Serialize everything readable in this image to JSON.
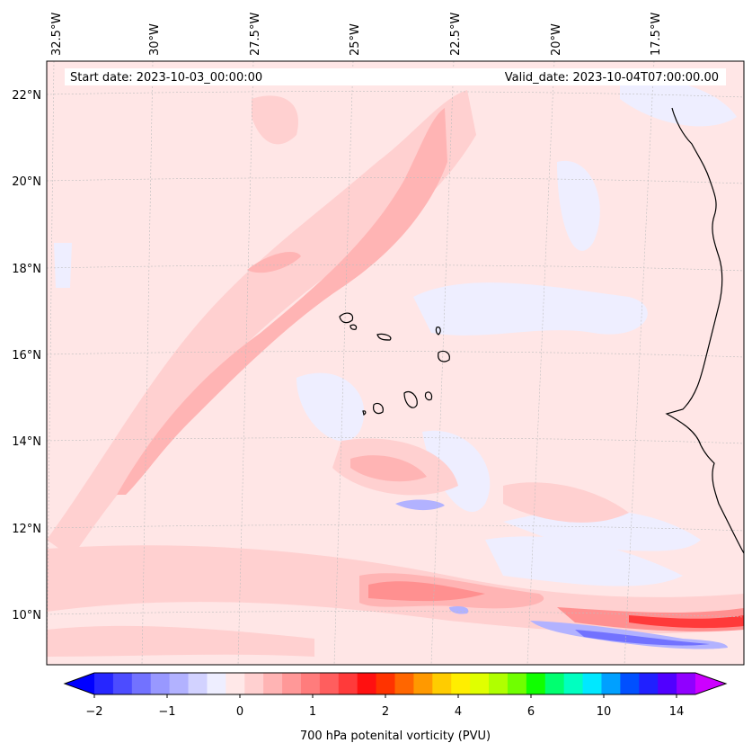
{
  "map": {
    "start_date": "Start date: 2023-10-03_00:00:00",
    "valid_date": "Valid_date: 2023-10-04T07:00:00.00",
    "lon_labels": [
      "32.5°W",
      "30°W",
      "27.5°W",
      "25°W",
      "22.5°W",
      "20°W",
      "17.5°W"
    ],
    "lat_labels": [
      "22°N",
      "20°N",
      "18°N",
      "16°N",
      "14°N",
      "12°N",
      "10°N"
    ]
  },
  "colorbar": {
    "title": "700 hPa potenital vorticity (PVU)",
    "tick_labels": [
      "−2",
      "−1",
      "0",
      "1",
      "2",
      "4",
      "6",
      "10",
      "14"
    ],
    "colors": [
      "#0000ff",
      "#2626ff",
      "#4c4cff",
      "#7272ff",
      "#9898ff",
      "#b2b2ff",
      "#d2d2ff",
      "#eeeeff",
      "#ffe8e8",
      "#ffd0d0",
      "#ffb4b4",
      "#ff9898",
      "#ff7c7c",
      "#ff5e5e",
      "#ff3a3a",
      "#ff1010",
      "#ff3300",
      "#ff6600",
      "#ff9900",
      "#ffcc00",
      "#ffee00",
      "#e0ff00",
      "#b0ff00",
      "#70ff00",
      "#10ff00",
      "#00ff70",
      "#00ffc0",
      "#00e8ff",
      "#00a0ff",
      "#0050ff",
      "#2020ff",
      "#5000ff",
      "#9000ff",
      "#cc00ff"
    ]
  },
  "colors": {
    "background_pv": "#ffe6e6",
    "light_pink": "#ffd0d0",
    "mid_pink": "#ffb4b4",
    "red": "#ff5050",
    "light_blue": "#eeeeff",
    "blue": "#8888ff",
    "coast": "#000000"
  }
}
